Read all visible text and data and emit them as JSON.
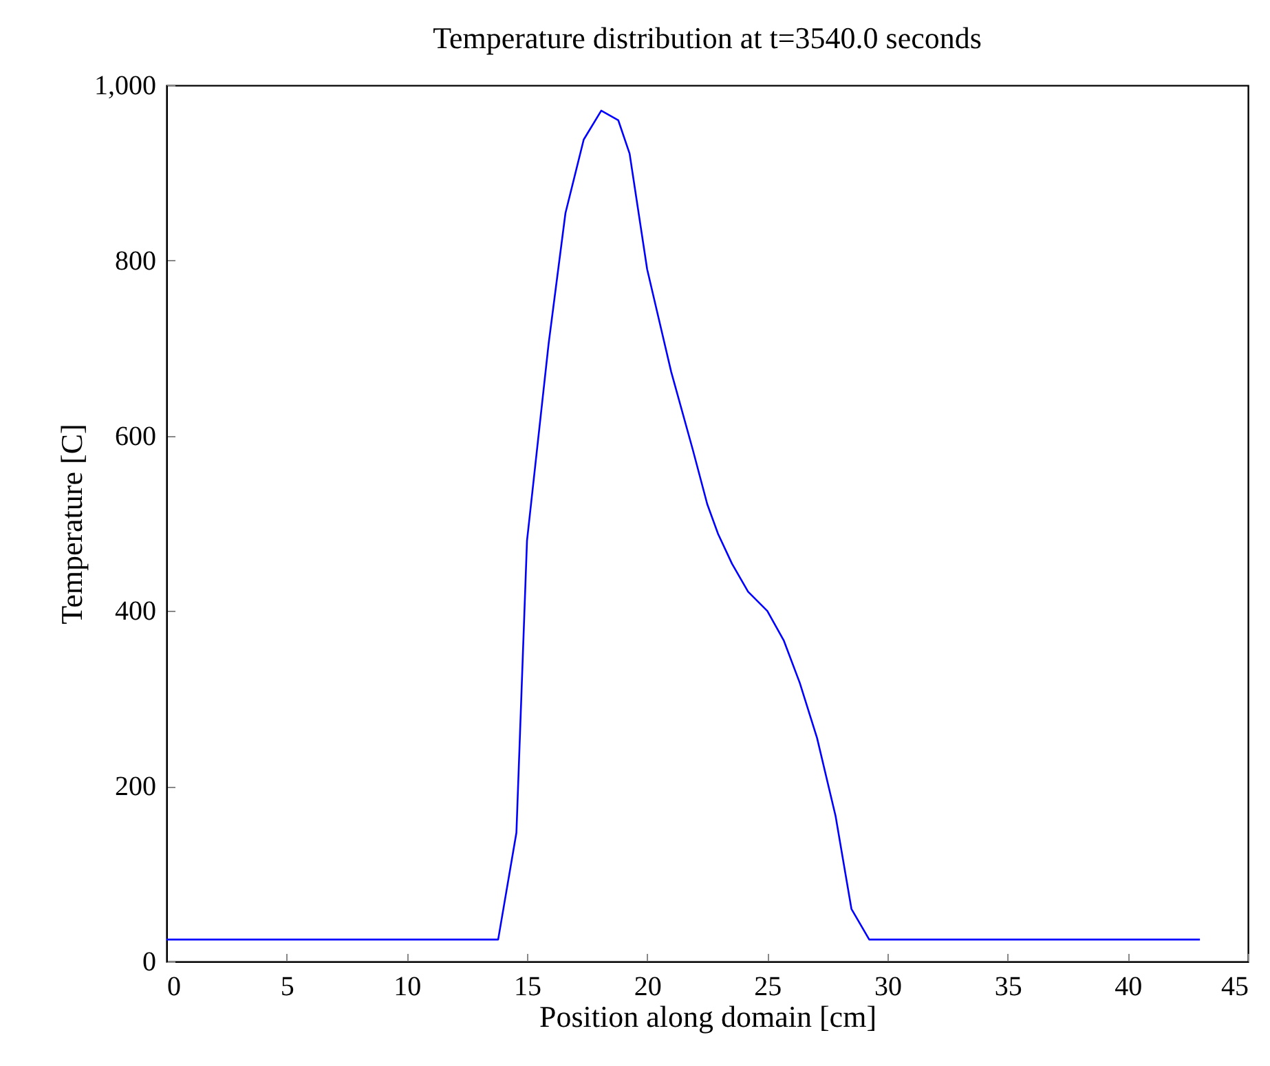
{
  "chart_data": {
    "type": "line",
    "title": "Temperature distribution at t=3540.0 seconds",
    "xlabel": "Position along domain [cm]",
    "ylabel": "Temperature [C]",
    "x": [
      0,
      13.8,
      14.56,
      15.0,
      15.9,
      16.6,
      17.36,
      18.09,
      18.8,
      19.27,
      20.0,
      21.0,
      21.9,
      22.5,
      22.95,
      23.53,
      24.2,
      25.0,
      25.69,
      26.35,
      27.07,
      27.84,
      28.5,
      29.24,
      43.0
    ],
    "series": [
      {
        "color": "#0000ff",
        "values": [
          25,
          25,
          147,
          480,
          705,
          854,
          938,
          971,
          960,
          922,
          790,
          673,
          584,
          522,
          488,
          454,
          422,
          400,
          366,
          318,
          255,
          166,
          60,
          25,
          25
        ]
      }
    ],
    "xlim": [
      0,
      45
    ],
    "xticks": [
      0,
      5,
      10,
      15,
      20,
      25,
      30,
      35,
      40,
      45
    ],
    "ylim": [
      0,
      1000
    ],
    "yticks": [
      0,
      200,
      400,
      600,
      800,
      {
        "value": 1000,
        "label": "1,000"
      }
    ],
    "grid": false,
    "marker": "none",
    "line_style": "solid"
  }
}
